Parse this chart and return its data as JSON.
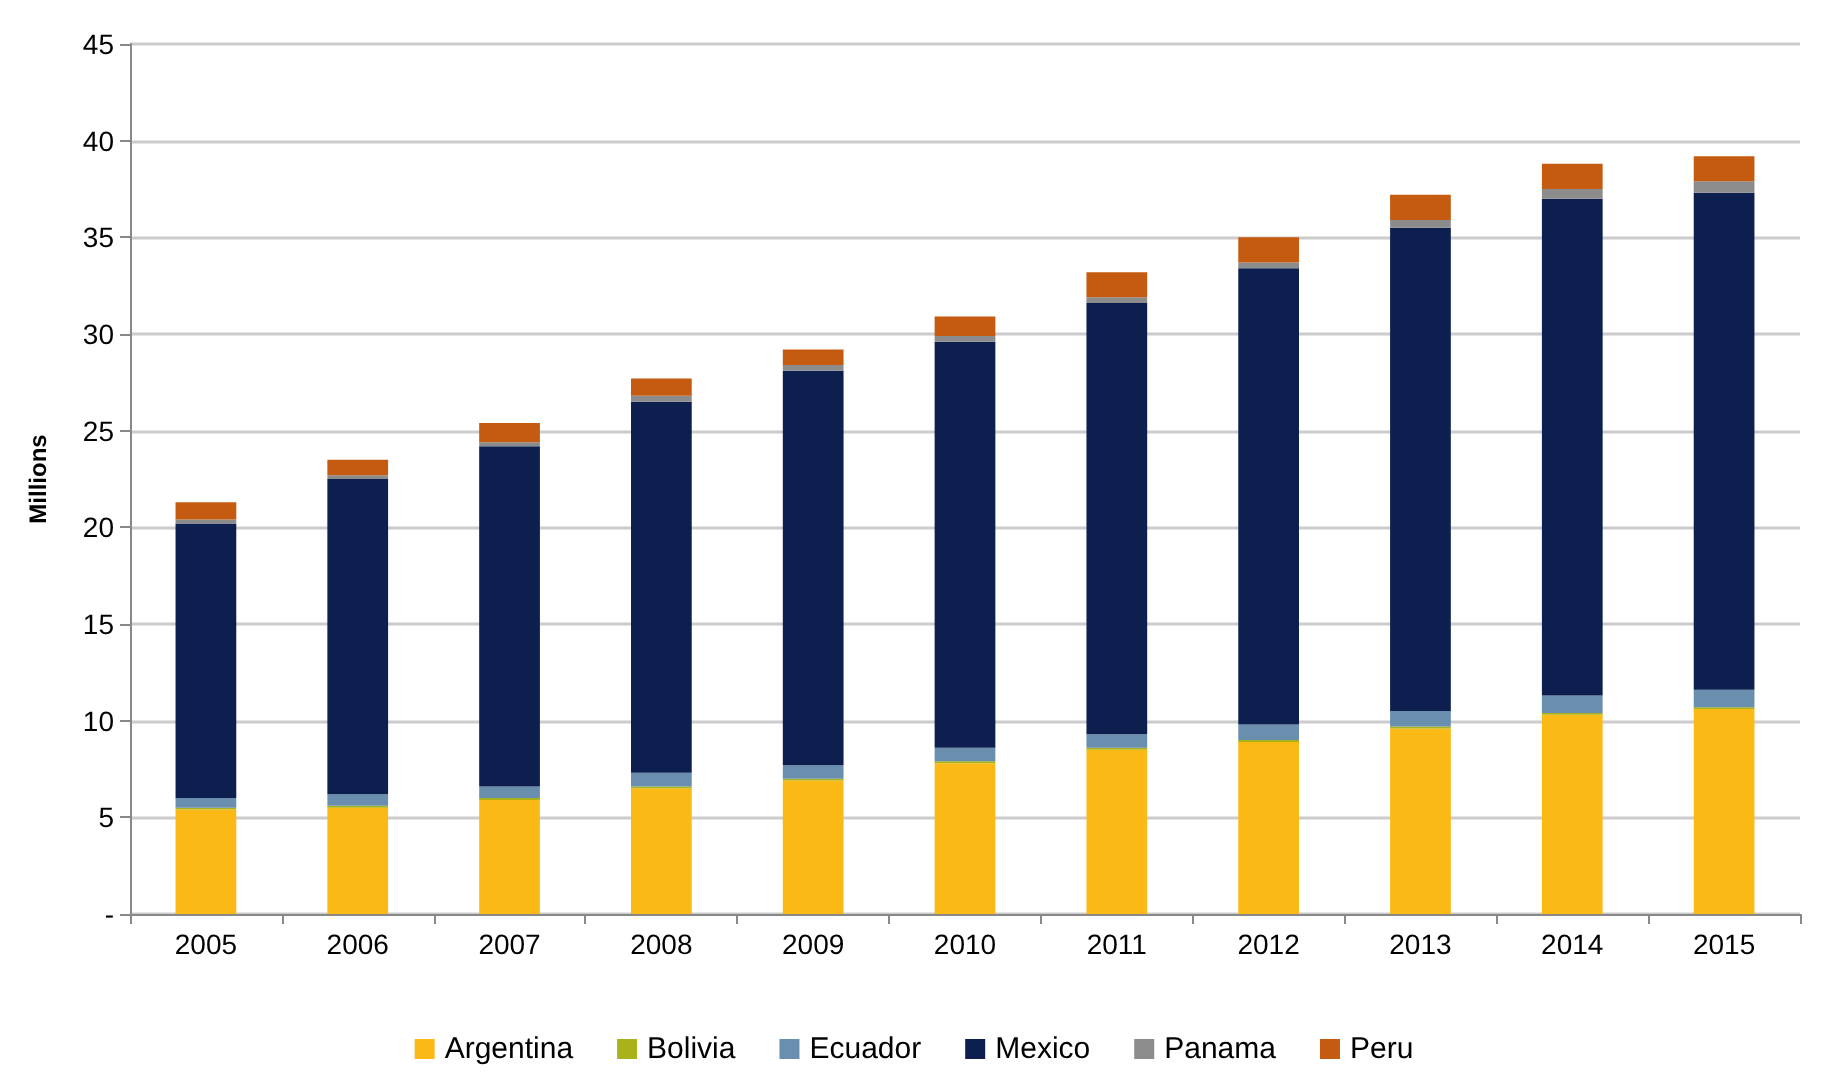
{
  "chart_data": {
    "type": "bar",
    "stacked": true,
    "ylabel": "Millions",
    "categories": [
      "2005",
      "2006",
      "2007",
      "2008",
      "2009",
      "2010",
      "2011",
      "2012",
      "2013",
      "2014",
      "2015"
    ],
    "series": [
      {
        "name": "Argentina",
        "color": "#fbb916",
        "values": [
          5.4,
          5.5,
          5.9,
          6.5,
          6.9,
          7.8,
          8.5,
          8.9,
          9.6,
          10.3,
          10.6
        ]
      },
      {
        "name": "Bolivia",
        "color": "#a9b21a",
        "values": [
          0.1,
          0.1,
          0.1,
          0.1,
          0.1,
          0.1,
          0.1,
          0.1,
          0.1,
          0.1,
          0.1
        ]
      },
      {
        "name": "Ecuador",
        "color": "#6a8fae",
        "values": [
          0.5,
          0.6,
          0.6,
          0.7,
          0.7,
          0.7,
          0.7,
          0.8,
          0.8,
          0.9,
          0.9
        ]
      },
      {
        "name": "Mexico",
        "color": "#0c1f4e",
        "values": [
          14.2,
          16.3,
          17.6,
          19.2,
          20.4,
          21.0,
          22.3,
          23.6,
          25.0,
          25.7,
          25.7
        ]
      },
      {
        "name": "Panama",
        "color": "#8c8c8c",
        "values": [
          0.2,
          0.2,
          0.2,
          0.3,
          0.3,
          0.3,
          0.3,
          0.3,
          0.4,
          0.5,
          0.6
        ]
      },
      {
        "name": "Peru",
        "color": "#c55a11",
        "values": [
          0.9,
          0.8,
          1.0,
          0.9,
          0.8,
          1.0,
          1.3,
          1.3,
          1.3,
          1.3,
          1.3
        ]
      }
    ],
    "ylim": [
      0,
      45
    ],
    "yticks": [
      {
        "value": 0,
        "label": "-"
      },
      5,
      10,
      15,
      20,
      25,
      30,
      35,
      40,
      45
    ],
    "grid": "y",
    "legend": "bottom"
  }
}
